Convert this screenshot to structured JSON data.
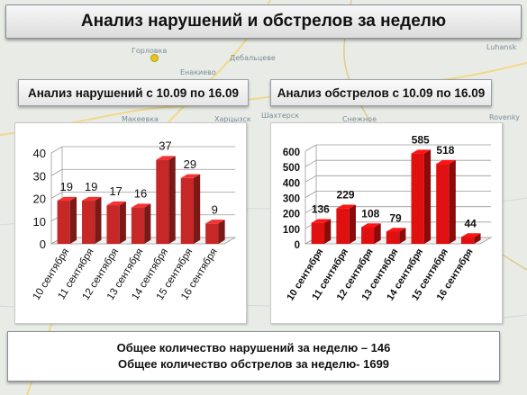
{
  "title": "Анализ нарушений и обстрелов за неделю",
  "map_labels": [
    "Горловка",
    "Енакиево",
    "Макеевка",
    "Харцызск",
    "Шахтерск",
    "Снежное",
    "Rovenky",
    "Дебальцеве",
    "Luhansk"
  ],
  "colors": {
    "bar_left": "#c62828",
    "bar_right": "#e01010",
    "panel_bg": "#ffffff"
  },
  "summary": {
    "line1": "Общее количество нарушений за неделю – 146",
    "line2": "Общее количество обстрелов за неделю- 1699"
  },
  "chart_data": [
    {
      "type": "bar",
      "title": "Анализ нарушений с 10.09 по 16.09",
      "categories": [
        "10 сентября",
        "11 сентября",
        "12 сентября",
        "13 сентября",
        "14 сентября",
        "15 сентября",
        "16 сентября"
      ],
      "values": [
        19,
        19,
        17,
        16,
        37,
        29,
        9
      ],
      "yticks": [
        0,
        10,
        20,
        30,
        40
      ],
      "ylim": [
        0,
        40
      ],
      "grid": true,
      "style": "3d"
    },
    {
      "type": "bar",
      "title": "Анализ обстрелов с 10.09 по 16.09",
      "categories": [
        "10 сентября",
        "11 сентября",
        "12 сентября",
        "13 сентября",
        "14 сентября",
        "15 сентября",
        "16 сентября"
      ],
      "values": [
        136,
        229,
        108,
        79,
        585,
        518,
        44
      ],
      "yticks": [
        0,
        100,
        200,
        300,
        400,
        500,
        600
      ],
      "ylim": [
        0,
        600
      ],
      "grid": true,
      "style": "3d"
    }
  ]
}
